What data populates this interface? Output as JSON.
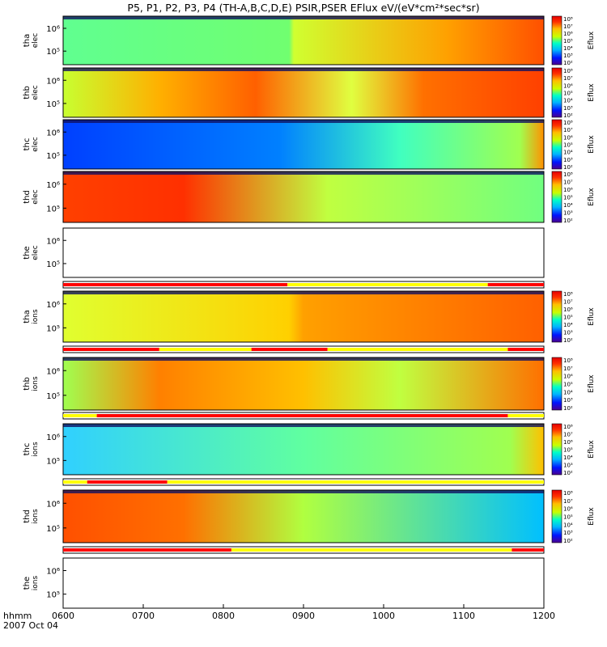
{
  "title": "P5, P1, P2, P3, P4 (TH-A,B,C,D,E) PSIR,PSER EFlux eV/(eV*cm²*sec*sr)",
  "x_footer": {
    "axis_label": "hhmm",
    "date": "2007 Oct 04"
  },
  "chart_data": {
    "type": "heatmap",
    "x": {
      "label": "hhmm",
      "ticks": [
        "0600",
        "0700",
        "0800",
        "0900",
        "1000",
        "1100",
        "1200"
      ],
      "range_hours": [
        6,
        12
      ],
      "date": "2007 Oct 04"
    },
    "y": {
      "scale": "log",
      "ticks": [
        "10⁵",
        "10⁶"
      ],
      "values": [
        100000,
        1000000
      ]
    },
    "colorbar": {
      "label": "Eflux",
      "scale": "log",
      "ticks": [
        "10²",
        "10³",
        "10⁴",
        "10⁵",
        "10⁶",
        "10⁷",
        "10⁸"
      ],
      "colors": [
        "#4b0090",
        "#0014ff",
        "#00b4ff",
        "#00ffc8",
        "#c8ff00",
        "#ffbe00",
        "#ff3200",
        "#e60000"
      ]
    },
    "panels": [
      {
        "id": "tha-elec",
        "ylabel": [
          "tha",
          "elec"
        ],
        "has_colorbar": true,
        "has_data": true
      },
      {
        "id": "thb-elec",
        "ylabel": [
          "thb",
          "elec"
        ],
        "has_colorbar": true,
        "has_data": true
      },
      {
        "id": "thc-elec",
        "ylabel": [
          "thc",
          "elec"
        ],
        "has_colorbar": true,
        "has_data": true
      },
      {
        "id": "thd-elec",
        "ylabel": [
          "thd",
          "elec"
        ],
        "has_colorbar": true,
        "has_data": true
      },
      {
        "id": "the-elec",
        "ylabel": [
          "the",
          "elec"
        ],
        "has_colorbar": false,
        "has_data": false
      },
      {
        "id": "tha-ions",
        "ylabel": [
          "tha",
          "ions"
        ],
        "has_colorbar": true,
        "has_data": true
      },
      {
        "id": "thb-ions",
        "ylabel": [
          "thb",
          "ions"
        ],
        "has_colorbar": true,
        "has_data": true
      },
      {
        "id": "thc-ions",
        "ylabel": [
          "thc",
          "ions"
        ],
        "has_colorbar": true,
        "has_data": true
      },
      {
        "id": "thd-ions",
        "ylabel": [
          "thd",
          "ions"
        ],
        "has_colorbar": true,
        "has_data": true
      },
      {
        "id": "the-ions",
        "ylabel": [
          "the",
          "ions"
        ],
        "has_colorbar": false,
        "has_data": false
      }
    ],
    "mode_bars": [
      {
        "id": "bar-1",
        "colors": {
          "red": "#ff0000",
          "yellow": "#ffff00"
        },
        "segments": [
          {
            "from": 6.0,
            "to": 8.8,
            "color": "red"
          },
          {
            "from": 8.8,
            "to": 11.3,
            "color": "yellow"
          },
          {
            "from": 11.3,
            "to": 12.0,
            "color": "red"
          }
        ]
      },
      {
        "id": "bar-2",
        "segments": [
          {
            "from": 6.0,
            "to": 7.2,
            "color": "red"
          },
          {
            "from": 7.2,
            "to": 8.35,
            "color": "yellow"
          },
          {
            "from": 8.35,
            "to": 9.3,
            "color": "red"
          },
          {
            "from": 9.3,
            "to": 11.55,
            "color": "yellow"
          },
          {
            "from": 11.55,
            "to": 12.0,
            "color": "red"
          }
        ]
      },
      {
        "id": "bar-3",
        "segments": [
          {
            "from": 6.0,
            "to": 6.42,
            "color": "yellow"
          },
          {
            "from": 6.42,
            "to": 11.55,
            "color": "red"
          },
          {
            "from": 11.55,
            "to": 12.0,
            "color": "yellow"
          }
        ]
      },
      {
        "id": "bar-4",
        "segments": [
          {
            "from": 6.0,
            "to": 6.3,
            "color": "yellow"
          },
          {
            "from": 6.3,
            "to": 7.3,
            "color": "red"
          },
          {
            "from": 7.3,
            "to": 12.0,
            "color": "yellow"
          }
        ]
      },
      {
        "id": "bar-5",
        "segments": [
          {
            "from": 6.0,
            "to": 8.1,
            "color": "red"
          },
          {
            "from": 8.1,
            "to": 11.6,
            "color": "yellow"
          },
          {
            "from": 11.6,
            "to": 12.0,
            "color": "red"
          }
        ]
      }
    ]
  }
}
